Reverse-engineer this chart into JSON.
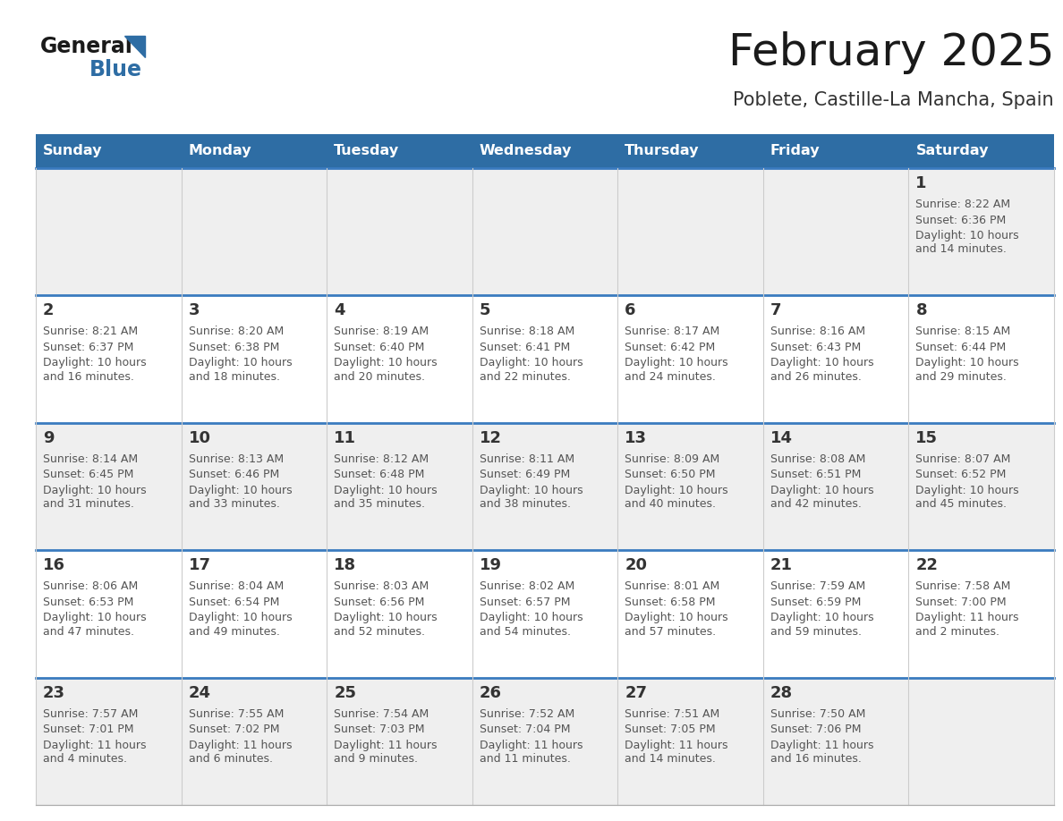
{
  "title": "February 2025",
  "subtitle": "Poblete, Castille-La Mancha, Spain",
  "days_of_week": [
    "Sunday",
    "Monday",
    "Tuesday",
    "Wednesday",
    "Thursday",
    "Friday",
    "Saturday"
  ],
  "header_bg": "#2E6DA4",
  "header_text": "#FFFFFF",
  "cell_bg_light": "#EFEFEF",
  "cell_bg_white": "#FFFFFF",
  "cell_border_h": "#3A7BBF",
  "cell_border_v": "#CCCCCC",
  "day_number_color": "#333333",
  "info_text_color": "#555555",
  "title_color": "#1a1a1a",
  "subtitle_color": "#333333",
  "logo_general_color": "#1a1a1a",
  "logo_blue_color": "#2E6DA4",
  "weeks": [
    [
      null,
      null,
      null,
      null,
      null,
      null,
      1
    ],
    [
      2,
      3,
      4,
      5,
      6,
      7,
      8
    ],
    [
      9,
      10,
      11,
      12,
      13,
      14,
      15
    ],
    [
      16,
      17,
      18,
      19,
      20,
      21,
      22
    ],
    [
      23,
      24,
      25,
      26,
      27,
      28,
      null
    ]
  ],
  "cell_data": {
    "1": {
      "sunrise": "8:22 AM",
      "sunset": "6:36 PM",
      "daylight": "10 hours and 14 minutes."
    },
    "2": {
      "sunrise": "8:21 AM",
      "sunset": "6:37 PM",
      "daylight": "10 hours and 16 minutes."
    },
    "3": {
      "sunrise": "8:20 AM",
      "sunset": "6:38 PM",
      "daylight": "10 hours and 18 minutes."
    },
    "4": {
      "sunrise": "8:19 AM",
      "sunset": "6:40 PM",
      "daylight": "10 hours and 20 minutes."
    },
    "5": {
      "sunrise": "8:18 AM",
      "sunset": "6:41 PM",
      "daylight": "10 hours and 22 minutes."
    },
    "6": {
      "sunrise": "8:17 AM",
      "sunset": "6:42 PM",
      "daylight": "10 hours and 24 minutes."
    },
    "7": {
      "sunrise": "8:16 AM",
      "sunset": "6:43 PM",
      "daylight": "10 hours and 26 minutes."
    },
    "8": {
      "sunrise": "8:15 AM",
      "sunset": "6:44 PM",
      "daylight": "10 hours and 29 minutes."
    },
    "9": {
      "sunrise": "8:14 AM",
      "sunset": "6:45 PM",
      "daylight": "10 hours and 31 minutes."
    },
    "10": {
      "sunrise": "8:13 AM",
      "sunset": "6:46 PM",
      "daylight": "10 hours and 33 minutes."
    },
    "11": {
      "sunrise": "8:12 AM",
      "sunset": "6:48 PM",
      "daylight": "10 hours and 35 minutes."
    },
    "12": {
      "sunrise": "8:11 AM",
      "sunset": "6:49 PM",
      "daylight": "10 hours and 38 minutes."
    },
    "13": {
      "sunrise": "8:09 AM",
      "sunset": "6:50 PM",
      "daylight": "10 hours and 40 minutes."
    },
    "14": {
      "sunrise": "8:08 AM",
      "sunset": "6:51 PM",
      "daylight": "10 hours and 42 minutes."
    },
    "15": {
      "sunrise": "8:07 AM",
      "sunset": "6:52 PM",
      "daylight": "10 hours and 45 minutes."
    },
    "16": {
      "sunrise": "8:06 AM",
      "sunset": "6:53 PM",
      "daylight": "10 hours and 47 minutes."
    },
    "17": {
      "sunrise": "8:04 AM",
      "sunset": "6:54 PM",
      "daylight": "10 hours and 49 minutes."
    },
    "18": {
      "sunrise": "8:03 AM",
      "sunset": "6:56 PM",
      "daylight": "10 hours and 52 minutes."
    },
    "19": {
      "sunrise": "8:02 AM",
      "sunset": "6:57 PM",
      "daylight": "10 hours and 54 minutes."
    },
    "20": {
      "sunrise": "8:01 AM",
      "sunset": "6:58 PM",
      "daylight": "10 hours and 57 minutes."
    },
    "21": {
      "sunrise": "7:59 AM",
      "sunset": "6:59 PM",
      "daylight": "10 hours and 59 minutes."
    },
    "22": {
      "sunrise": "7:58 AM",
      "sunset": "7:00 PM",
      "daylight": "11 hours and 2 minutes."
    },
    "23": {
      "sunrise": "7:57 AM",
      "sunset": "7:01 PM",
      "daylight": "11 hours and 4 minutes."
    },
    "24": {
      "sunrise": "7:55 AM",
      "sunset": "7:02 PM",
      "daylight": "11 hours and 6 minutes."
    },
    "25": {
      "sunrise": "7:54 AM",
      "sunset": "7:03 PM",
      "daylight": "11 hours and 9 minutes."
    },
    "26": {
      "sunrise": "7:52 AM",
      "sunset": "7:04 PM",
      "daylight": "11 hours and 11 minutes."
    },
    "27": {
      "sunrise": "7:51 AM",
      "sunset": "7:05 PM",
      "daylight": "11 hours and 14 minutes."
    },
    "28": {
      "sunrise": "7:50 AM",
      "sunset": "7:06 PM",
      "daylight": "11 hours and 16 minutes."
    }
  },
  "figsize": [
    11.88,
    9.18
  ],
  "dpi": 100
}
